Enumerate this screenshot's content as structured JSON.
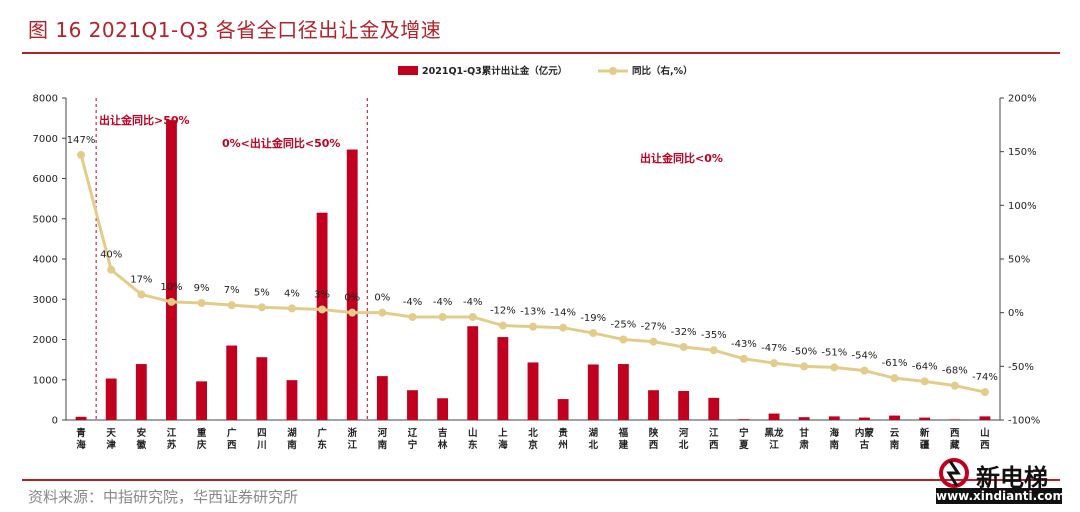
{
  "header": {
    "title": "图 16   2021Q1-Q3 各省全口径出让金及增速"
  },
  "footer": {
    "source": "资料来源：中指研究院，华西证券研究所"
  },
  "watermark": {
    "text": "新电梯",
    "url": "www.xindianti.com"
  },
  "colors": {
    "bar": "#c0001e",
    "line": "#e3cc8a",
    "brand": "#b5222a"
  },
  "chart_data": {
    "type": "bar",
    "categories": [
      "青\n海",
      "天\n津",
      "安\n徽",
      "江\n苏",
      "重\n庆",
      "广\n西",
      "四\n川",
      "湖\n南",
      "广\n东",
      "浙\n江",
      "河\n南",
      "辽\n宁",
      "吉\n林",
      "山\n东",
      "上\n海",
      "北\n京",
      "贵\n州",
      "湖\n北",
      "福\n建",
      "陕\n西",
      "河\n北",
      "江\n西",
      "宁\n夏",
      "黑龙\n江",
      "甘\n肃",
      "海\n南",
      "内蒙\n古",
      "云\n南",
      "新\n疆",
      "西\n藏",
      "山\n西"
    ],
    "series": [
      {
        "name": "2021Q1-Q3累计出让金（亿元）",
        "axis": "left",
        "type": "bar",
        "values": [
          80,
          1030,
          1390,
          7450,
          960,
          1850,
          1560,
          990,
          5150,
          6720,
          1090,
          740,
          540,
          2330,
          2060,
          1430,
          520,
          1380,
          1390,
          740,
          720,
          550,
          20,
          160,
          70,
          90,
          60,
          110,
          60,
          15,
          90
        ]
      },
      {
        "name": "同比（右,%）",
        "axis": "right",
        "type": "line",
        "values": [
          147,
          40,
          17,
          10,
          9,
          7,
          5,
          4,
          3,
          0,
          0,
          -4,
          -4,
          -4,
          -12,
          -13,
          -14,
          -19,
          -25,
          -27,
          -32,
          -35,
          -43,
          -47,
          -50,
          -51,
          -54,
          -61,
          -64,
          -68,
          -74
        ],
        "labels": [
          "147%",
          "40%",
          "17%",
          "10%",
          "9%",
          "7%",
          "5%",
          "4%",
          "3%",
          "0%",
          "0%",
          "-4%",
          "-4%",
          "-4%",
          "-12%",
          "-13%",
          "-14%",
          "-19%",
          "-25%",
          "-27%",
          "-32%",
          "-35%",
          "-43%",
          "-47%",
          "-50%",
          "-51%",
          "-54%",
          "-61%",
          "-64%",
          "-68%",
          "-74%"
        ]
      }
    ],
    "ylim_left": [
      0,
      8000
    ],
    "yticks_left": [
      "0",
      "1000",
      "2000",
      "3000",
      "4000",
      "5000",
      "6000",
      "7000",
      "8000"
    ],
    "ylim_right": [
      -100,
      200
    ],
    "yticks_right": [
      "-100%",
      "-50%",
      "0%",
      "50%",
      "100%",
      "150%",
      "200%"
    ],
    "legend_position": "top-center",
    "grid": false,
    "annotations": [
      {
        "text": "出让金同比>50%"
      },
      {
        "text": "0%<出让金同比<50%"
      },
      {
        "text": "出让金同比<0%"
      }
    ]
  }
}
